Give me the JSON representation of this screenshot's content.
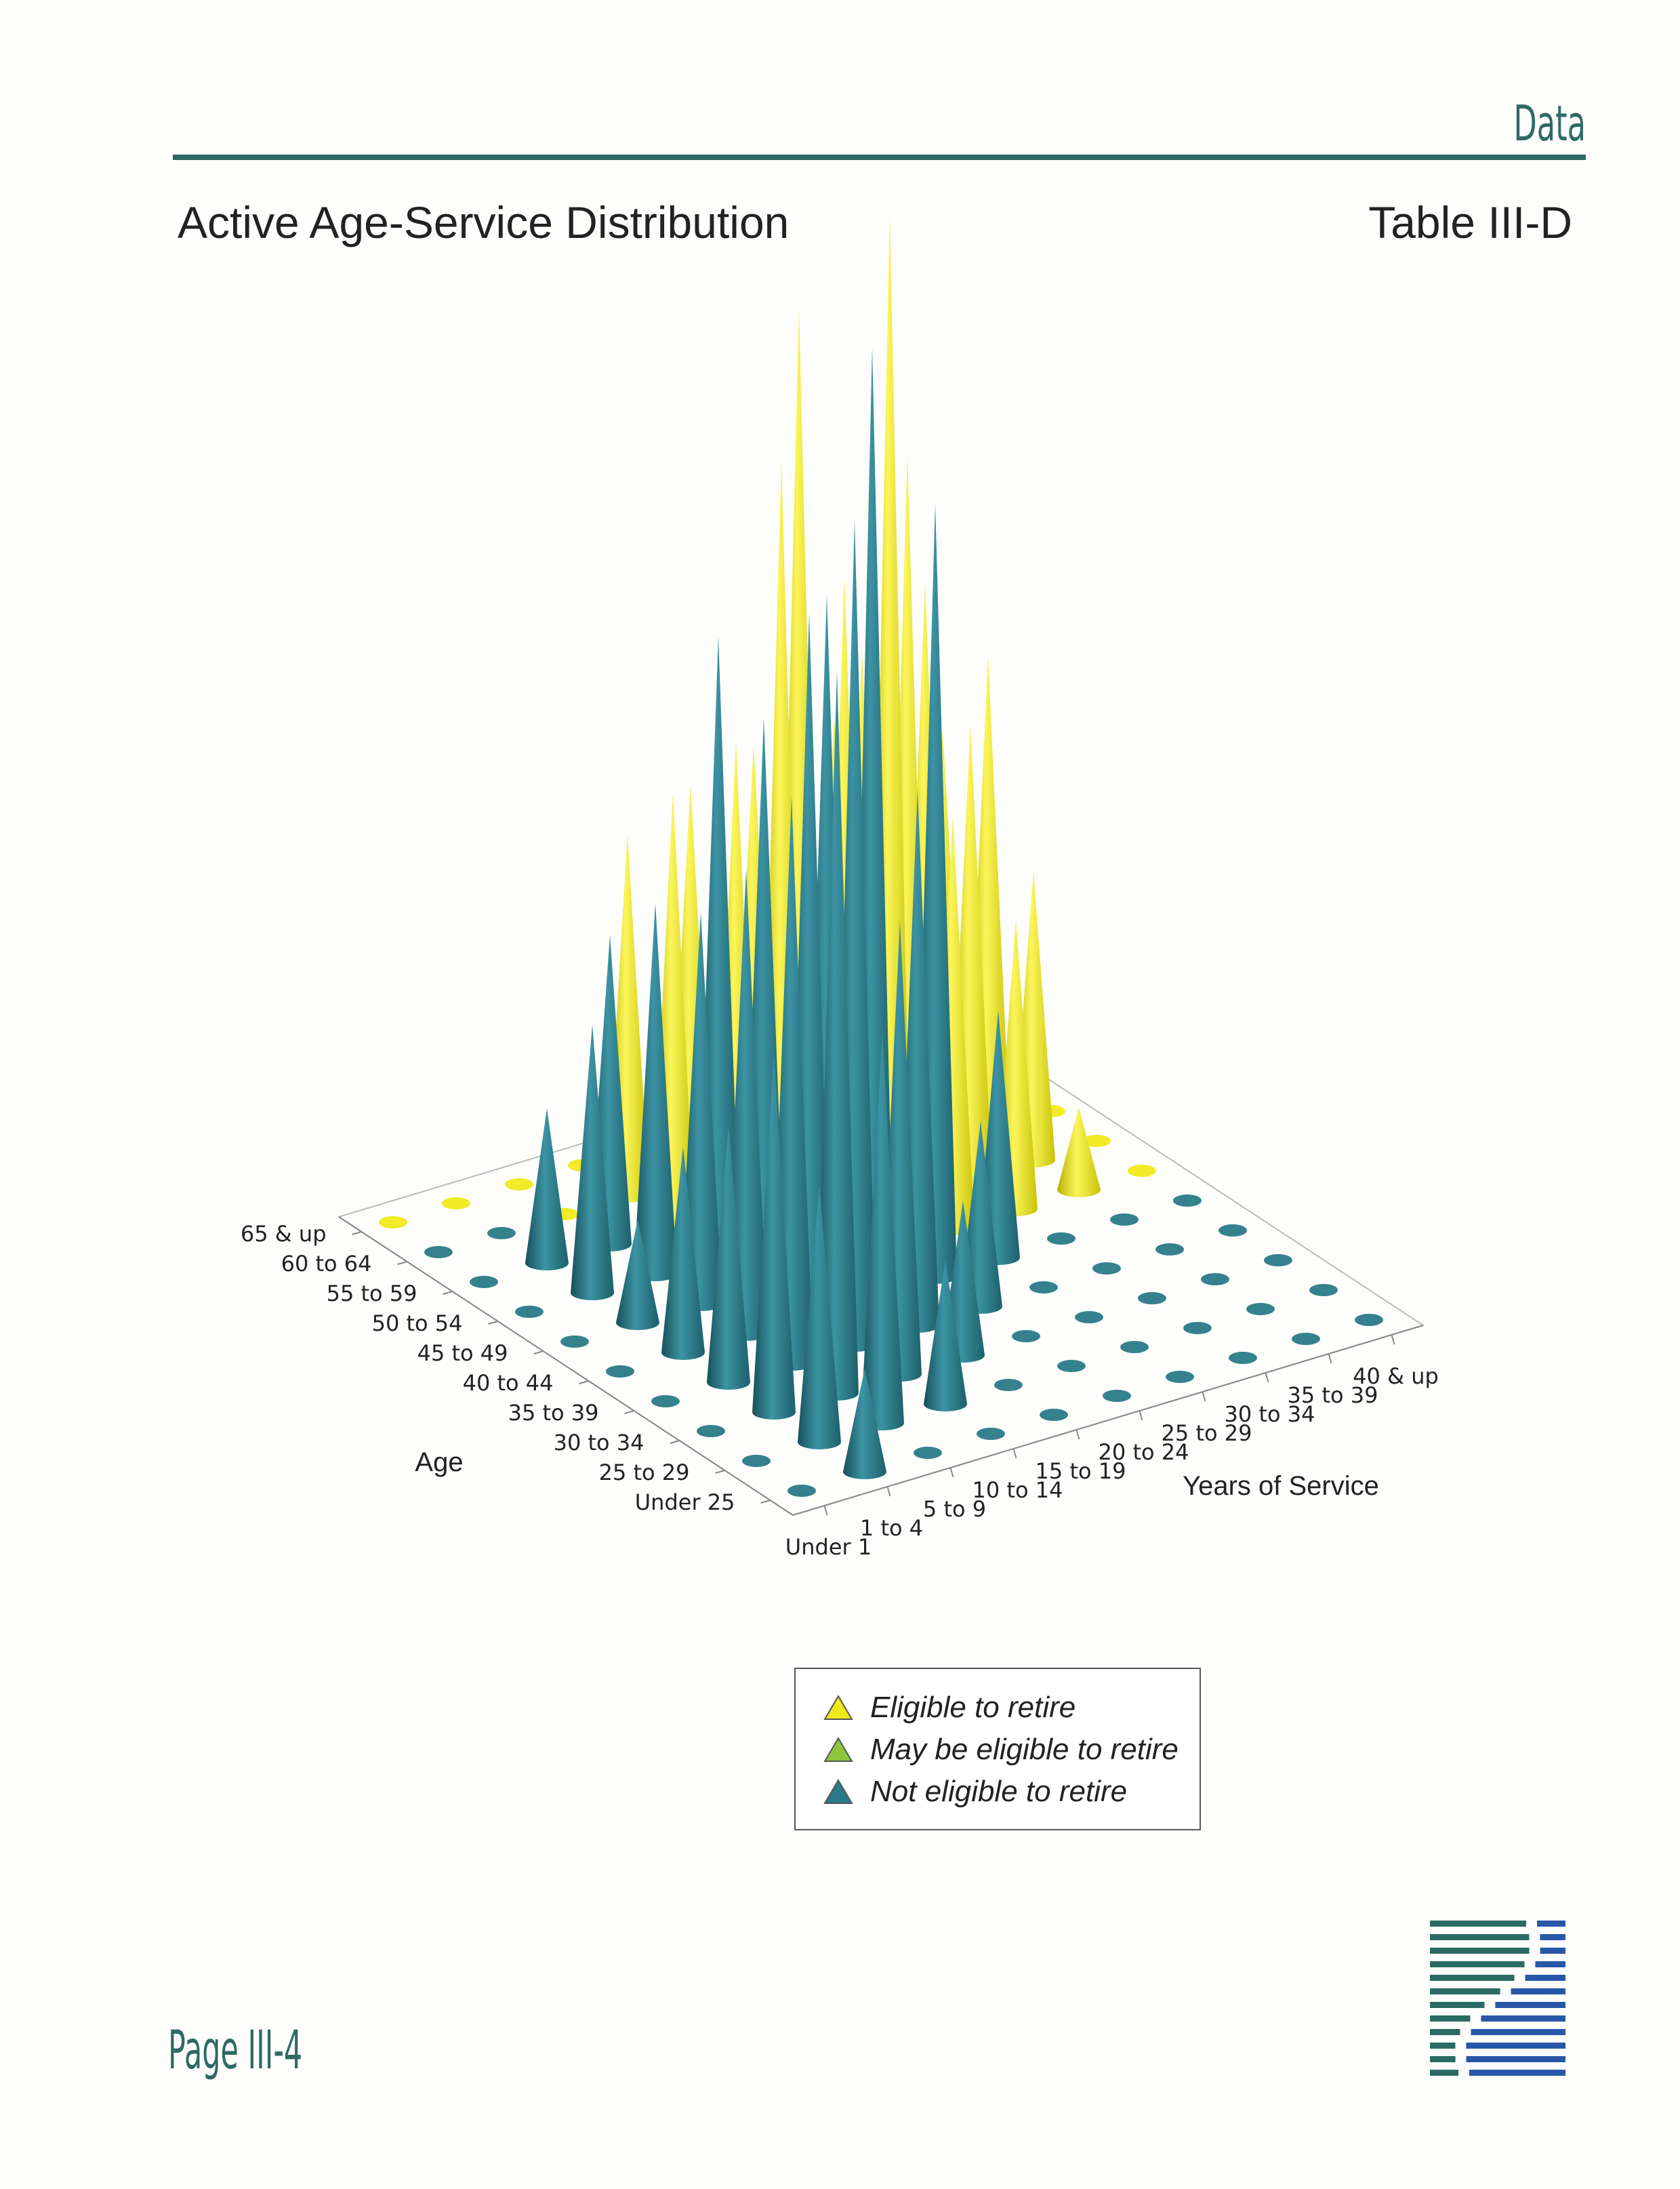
{
  "header": {
    "section_label": "Data",
    "title": "Active Age-Service Distribution",
    "table_id": "Table III-D"
  },
  "footer": {
    "page_number": "Page III-4",
    "logo_icon": "striped-s-logo-icon"
  },
  "colors": {
    "eligible": "#f0ea1c",
    "may_be_eligible": "#8cc63e",
    "not_eligible": "#2a7a88",
    "rule": "#2f6a64"
  },
  "legend": {
    "placement": "below",
    "items": [
      {
        "label": "Eligible to retire",
        "color": "#f0ea1c"
      },
      {
        "label": "May be eligible to retire",
        "color": "#8cc63e"
      },
      {
        "label": "Not eligible to retire",
        "color": "#2a7a88"
      }
    ]
  },
  "chart_data": {
    "type": "3d-cone",
    "title": "",
    "xlabel": "Years of Service",
    "ylabel": "Age",
    "service_categories": [
      "Under 1",
      "1 to 4",
      "5 to 9",
      "10 to 14",
      "15 to 19",
      "20 to 24",
      "25 to 29",
      "30 to 34",
      "35 to 39",
      "40 & up"
    ],
    "age_categories": [
      "Under 25",
      "25 to 29",
      "30 to 34",
      "35 to 39",
      "40 to 44",
      "45 to 49",
      "50 to 54",
      "55 to 59",
      "60 to 64",
      "65 & up"
    ],
    "series_names": [
      "Eligible to retire",
      "May be eligible to retire",
      "Not eligible to retire"
    ],
    "value_note": "",
    "values": [
      [
        0,
        10,
        0,
        0,
        0,
        0,
        0,
        0,
        0,
        0
      ],
      [
        0,
        25,
        38,
        14,
        0,
        0,
        0,
        0,
        0,
        0
      ],
      [
        0,
        35,
        70,
        44,
        15,
        0,
        0,
        0,
        0,
        0
      ],
      [
        0,
        25,
        55,
        80,
        52,
        18,
        0,
        0,
        0,
        0
      ],
      [
        0,
        20,
        45,
        68,
        92,
        75,
        24,
        0,
        0,
        0
      ],
      [
        0,
        10,
        38,
        55,
        65,
        100,
        40,
        28,
        8,
        0
      ],
      [
        0,
        26,
        36,
        60,
        75,
        62,
        72,
        44,
        28,
        0
      ],
      [
        0,
        15,
        30,
        42,
        45,
        85,
        50,
        55,
        46,
        0
      ],
      [
        0,
        0,
        0,
        35,
        38,
        40,
        25,
        40,
        36,
        0
      ],
      [
        0,
        0,
        0,
        0,
        0,
        0,
        20,
        36,
        0,
        0
      ]
    ],
    "status": [
      [
        "N",
        "N",
        "N",
        "N",
        "N",
        "N",
        "N",
        "N",
        "N",
        "N"
      ],
      [
        "N",
        "N",
        "N",
        "N",
        "N",
        "N",
        "N",
        "N",
        "N",
        "N"
      ],
      [
        "N",
        "N",
        "N",
        "N",
        "N",
        "N",
        "N",
        "N",
        "N",
        "N"
      ],
      [
        "N",
        "N",
        "N",
        "N",
        "N",
        "N",
        "N",
        "N",
        "N",
        "N"
      ],
      [
        "N",
        "N",
        "N",
        "N",
        "N",
        "N",
        "N",
        "N",
        "N",
        "N"
      ],
      [
        "N",
        "N",
        "N",
        "N",
        "N",
        "E",
        "E",
        "E",
        "E",
        "E"
      ],
      [
        "N",
        "N",
        "N",
        "N",
        "E",
        "E",
        "E",
        "E",
        "E",
        "E"
      ],
      [
        "N",
        "N",
        "N",
        "E",
        "E",
        "E",
        "E",
        "E",
        "E",
        "E"
      ],
      [
        "N",
        "N",
        "E",
        "E",
        "E",
        "E",
        "E",
        "E",
        "E",
        "E"
      ],
      [
        "E",
        "E",
        "E",
        "E",
        "E",
        "E",
        "E",
        "E",
        "E",
        "E"
      ]
    ],
    "grid": true
  }
}
